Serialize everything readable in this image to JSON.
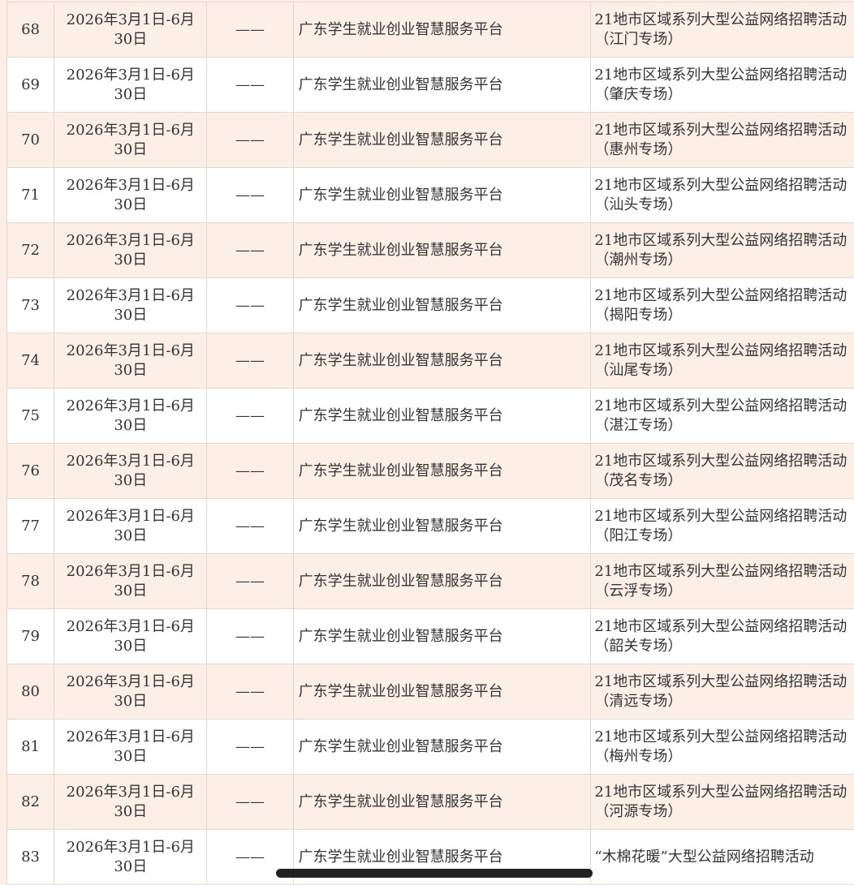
{
  "table": {
    "rows": [
      {
        "no": "68",
        "date": "2026年3月1日-6月30日",
        "organizer": "——",
        "platform": "广东学生就业创业智慧服务平台",
        "activity": "21地市区域系列大型公益网络招聘活动（江门专场）"
      },
      {
        "no": "69",
        "date": "2026年3月1日-6月30日",
        "organizer": "——",
        "platform": "广东学生就业创业智慧服务平台",
        "activity": "21地市区域系列大型公益网络招聘活动（肇庆专场）"
      },
      {
        "no": "70",
        "date": "2026年3月1日-6月30日",
        "organizer": "——",
        "platform": "广东学生就业创业智慧服务平台",
        "activity": "21地市区域系列大型公益网络招聘活动（惠州专场）"
      },
      {
        "no": "71",
        "date": "2026年3月1日-6月30日",
        "organizer": "——",
        "platform": "广东学生就业创业智慧服务平台",
        "activity": "21地市区域系列大型公益网络招聘活动（汕头专场）"
      },
      {
        "no": "72",
        "date": "2026年3月1日-6月30日",
        "organizer": "——",
        "platform": "广东学生就业创业智慧服务平台",
        "activity": "21地市区域系列大型公益网络招聘活动（潮州专场）"
      },
      {
        "no": "73",
        "date": "2026年3月1日-6月30日",
        "organizer": "——",
        "platform": "广东学生就业创业智慧服务平台",
        "activity": "21地市区域系列大型公益网络招聘活动（揭阳专场）"
      },
      {
        "no": "74",
        "date": "2026年3月1日-6月30日",
        "organizer": "——",
        "platform": "广东学生就业创业智慧服务平台",
        "activity": "21地市区域系列大型公益网络招聘活动（汕尾专场）"
      },
      {
        "no": "75",
        "date": "2026年3月1日-6月30日",
        "organizer": "——",
        "platform": "广东学生就业创业智慧服务平台",
        "activity": "21地市区域系列大型公益网络招聘活动（湛江专场）"
      },
      {
        "no": "76",
        "date": "2026年3月1日-6月30日",
        "organizer": "——",
        "platform": "广东学生就业创业智慧服务平台",
        "activity": "21地市区域系列大型公益网络招聘活动（茂名专场）"
      },
      {
        "no": "77",
        "date": "2026年3月1日-6月30日",
        "organizer": "——",
        "platform": "广东学生就业创业智慧服务平台",
        "activity": "21地市区域系列大型公益网络招聘活动（阳江专场）"
      },
      {
        "no": "78",
        "date": "2026年3月1日-6月30日",
        "organizer": "——",
        "platform": "广东学生就业创业智慧服务平台",
        "activity": "21地市区域系列大型公益网络招聘活动（云浮专场）"
      },
      {
        "no": "79",
        "date": "2026年3月1日-6月30日",
        "organizer": "——",
        "platform": "广东学生就业创业智慧服务平台",
        "activity": "21地市区域系列大型公益网络招聘活动（韶关专场）"
      },
      {
        "no": "80",
        "date": "2026年3月1日-6月30日",
        "organizer": "——",
        "platform": "广东学生就业创业智慧服务平台",
        "activity": "21地市区域系列大型公益网络招聘活动（清远专场）"
      },
      {
        "no": "81",
        "date": "2026年3月1日-6月30日",
        "organizer": "——",
        "platform": "广东学生就业创业智慧服务平台",
        "activity": "21地市区域系列大型公益网络招聘活动（梅州专场）"
      },
      {
        "no": "82",
        "date": "2026年3月1日-6月30日",
        "organizer": "——",
        "platform": "广东学生就业创业智慧服务平台",
        "activity": "21地市区域系列大型公益网络招聘活动（河源专场）"
      },
      {
        "no": "83",
        "date": "2026年3月1日-6月30日",
        "organizer": "——",
        "platform": "广东学生就业创业智慧服务平台",
        "activity": "“木棉花暖”大型公益网络招聘活动"
      }
    ]
  },
  "colors": {
    "row_alt": "#fcefe6",
    "row": "#ffffff",
    "border": "#e6d6cb"
  }
}
